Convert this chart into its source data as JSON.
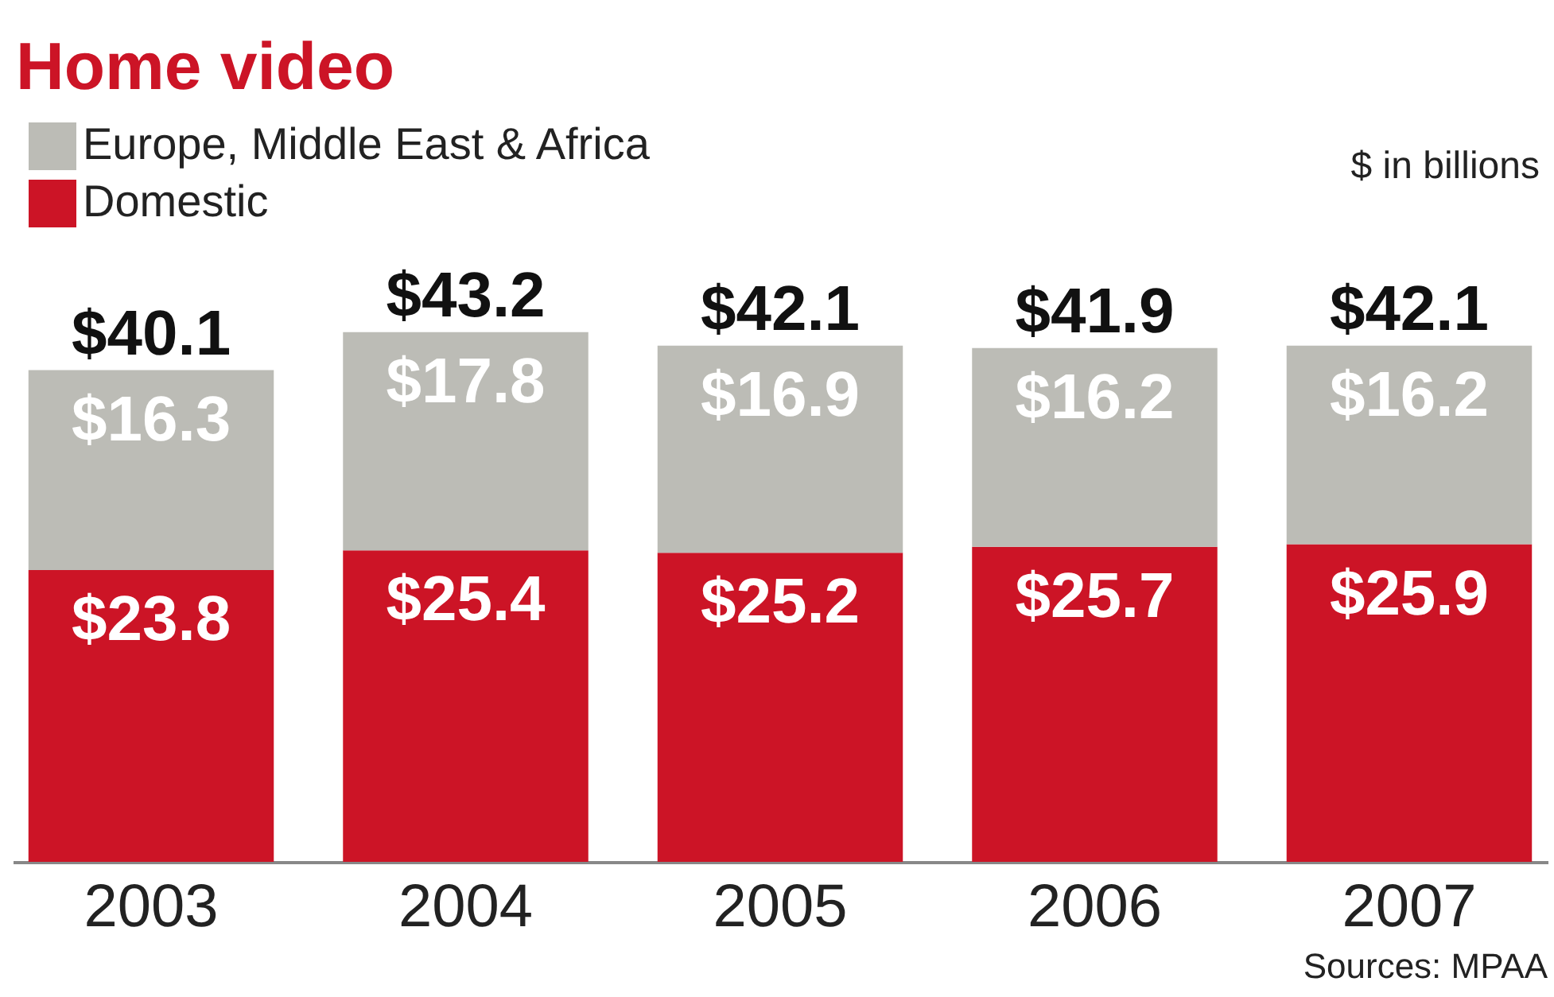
{
  "chart_data": {
    "type": "bar",
    "title": "Home video",
    "stacked": true,
    "categories": [
      "2003",
      "2004",
      "2005",
      "2006",
      "2007"
    ],
    "series": [
      {
        "name": "Domestic",
        "color": "#cc1426",
        "values": [
          23.8,
          25.4,
          25.2,
          25.7,
          25.9
        ],
        "value_labels": [
          "$23.8",
          "$25.4",
          "$25.2",
          "$25.7",
          "$25.9"
        ]
      },
      {
        "name": "Europe, Middle East & Africa",
        "color": "#bcbcb6",
        "values": [
          16.3,
          17.8,
          16.9,
          16.2,
          16.2
        ],
        "value_labels": [
          "$16.3",
          "$17.8",
          "$16.9",
          "$16.2",
          "$16.2"
        ]
      }
    ],
    "totals": [
      "$40.1",
      "$43.2",
      "$42.1",
      "$41.9",
      "$42.1"
    ],
    "tick_labels": "x",
    "legend": "top left",
    "annotations": [
      "$ in billions",
      "Sources: MPAA"
    ]
  }
}
